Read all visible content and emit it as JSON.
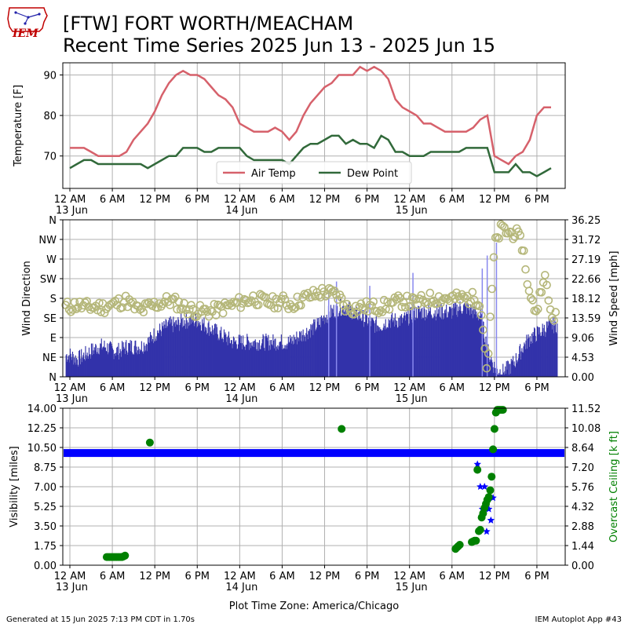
{
  "header": {
    "title_line1": "[FTW] FORT WORTH/MEACHAM",
    "title_line2": "Recent Time Series 2025 Jun 13 - 2025 Jun 15",
    "logo_text": "IEM"
  },
  "footer": {
    "generated": "Generated at 15 Jun 2025 7:13 PM CDT in 1.70s",
    "app": "IEM Autoplot App #43"
  },
  "colors": {
    "air_temp": "#d6616b",
    "dew_point": "#31693a",
    "wind_speed": "#3333aa",
    "wind_gust": "#8888ee",
    "wind_dir": "#b5b77a",
    "visibility": "#0000ff",
    "ceiling": "#008000"
  },
  "chart_data": [
    {
      "type": "line",
      "ylabel": "Temperature [F]",
      "ylim": [
        62,
        93
      ],
      "yticks": [
        70,
        80,
        90
      ],
      "grid": true,
      "legend": "bottom-center",
      "x_unit": "hours since 13 Jun 12 AM",
      "series": [
        {
          "name": "Air Temp",
          "x": [
            0,
            1,
            2,
            3,
            4,
            5,
            6,
            7,
            8,
            9,
            10,
            11,
            12,
            13,
            14,
            15,
            16,
            17,
            18,
            19,
            20,
            21,
            22,
            23,
            24,
            25,
            26,
            27,
            28,
            29,
            30,
            31,
            32,
            33,
            34,
            35,
            36,
            37,
            38,
            39,
            40,
            41,
            42,
            43,
            44,
            45,
            46,
            47,
            48,
            49,
            50,
            51,
            52,
            53,
            54,
            55,
            56,
            57,
            58,
            59,
            60,
            61,
            62,
            63,
            64,
            65,
            66,
            67,
            68
          ],
          "values": [
            72,
            72,
            72,
            71,
            70,
            70,
            70,
            70,
            71,
            74,
            76,
            78,
            81,
            85,
            88,
            90,
            91,
            90,
            90,
            89,
            87,
            85,
            84,
            82,
            78,
            77,
            76,
            76,
            76,
            77,
            76,
            74,
            76,
            80,
            83,
            85,
            87,
            88,
            90,
            90,
            90,
            92,
            91,
            92,
            91,
            89,
            84,
            82,
            81,
            80,
            78,
            78,
            77,
            76,
            76,
            76,
            76,
            77,
            79,
            80,
            70,
            69,
            68,
            70,
            71,
            74,
            80,
            82,
            82
          ]
        },
        {
          "name": "Dew Point",
          "x": [
            0,
            1,
            2,
            3,
            4,
            5,
            6,
            7,
            8,
            9,
            10,
            11,
            12,
            13,
            14,
            15,
            16,
            17,
            18,
            19,
            20,
            21,
            22,
            23,
            24,
            25,
            26,
            27,
            28,
            29,
            30,
            31,
            32,
            33,
            34,
            35,
            36,
            37,
            38,
            39,
            40,
            41,
            42,
            43,
            44,
            45,
            46,
            47,
            48,
            49,
            50,
            51,
            52,
            53,
            54,
            55,
            56,
            57,
            58,
            59,
            60,
            61,
            62,
            63,
            64,
            65,
            66,
            67,
            68
          ],
          "values": [
            67,
            68,
            69,
            69,
            68,
            68,
            68,
            68,
            68,
            68,
            68,
            67,
            68,
            69,
            70,
            70,
            72,
            72,
            72,
            71,
            71,
            72,
            72,
            72,
            72,
            70,
            69,
            69,
            69,
            69,
            69,
            68,
            70,
            72,
            73,
            73,
            74,
            75,
            75,
            73,
            74,
            73,
            73,
            72,
            75,
            74,
            71,
            71,
            70,
            70,
            70,
            71,
            71,
            71,
            71,
            71,
            72,
            72,
            72,
            72,
            66,
            66,
            66,
            68,
            66,
            66,
            65,
            66,
            67
          ]
        }
      ],
      "xtick_labels": [
        "12 AM\n13 Jun",
        "6 AM",
        "12 PM",
        "6 PM",
        "12 AM\n14 Jun",
        "6 AM",
        "12 PM",
        "6 PM",
        "12 AM\n15 Jun",
        "6 AM",
        "12 PM",
        "6 PM"
      ]
    },
    {
      "type": "bar",
      "ylabel_left": "Wind Direction",
      "ylabel_right": "Wind Speed [mph]",
      "left_tick_labels": [
        "N",
        "NE",
        "E",
        "SE",
        "S",
        "SW",
        "W",
        "NW",
        "N"
      ],
      "right_tick_labels": [
        "0.00",
        "4.53",
        "9.06",
        "13.59",
        "18.12",
        "22.66",
        "27.19",
        "31.72",
        "36.25"
      ],
      "speed_ylim": [
        0,
        36.25
      ],
      "direction_ylim": [
        0,
        360
      ],
      "grid": true,
      "x_unit": "hours since 13 Jun 12 AM",
      "speed_hourly": {
        "x": [
          0,
          1,
          2,
          3,
          4,
          5,
          6,
          7,
          8,
          9,
          10,
          11,
          12,
          13,
          14,
          15,
          16,
          17,
          18,
          19,
          20,
          21,
          22,
          23,
          24,
          25,
          26,
          27,
          28,
          29,
          30,
          31,
          32,
          33,
          34,
          35,
          36,
          37,
          38,
          39,
          40,
          41,
          42,
          43,
          44,
          45,
          46,
          47,
          48,
          49,
          50,
          51,
          52,
          53,
          54,
          55,
          56,
          57,
          58,
          59,
          60,
          61,
          62,
          63,
          64,
          65,
          66,
          67,
          68
        ],
        "values": [
          5,
          4,
          5,
          6,
          7,
          7,
          6,
          6,
          7,
          7,
          7,
          8,
          10,
          11,
          12,
          12,
          13,
          13,
          13,
          12,
          11,
          10,
          9,
          8,
          8,
          8,
          8,
          8,
          8,
          8,
          8,
          8,
          9,
          10,
          11,
          12,
          14,
          15,
          16,
          16,
          15,
          14,
          13,
          12,
          12,
          13,
          13,
          13,
          14,
          15,
          15,
          15,
          15,
          15,
          15,
          16,
          16,
          15,
          14,
          6,
          2,
          1,
          2,
          4,
          7,
          9,
          10,
          11,
          12
        ]
      },
      "gust_spikes": [
        {
          "x": 36.5,
          "value": 20
        },
        {
          "x": 37.6,
          "value": 22
        },
        {
          "x": 42.3,
          "value": 21
        },
        {
          "x": 48.4,
          "value": 24
        },
        {
          "x": 58.2,
          "value": 25
        },
        {
          "x": 58.9,
          "value": 28
        },
        {
          "x": 60.2,
          "value": 31
        }
      ],
      "direction_hourly": {
        "x": [
          0,
          1,
          2,
          3,
          4,
          5,
          6,
          7,
          8,
          9,
          10,
          11,
          12,
          13,
          14,
          15,
          16,
          17,
          18,
          19,
          20,
          21,
          22,
          23,
          24,
          25,
          26,
          27,
          28,
          29,
          30,
          31,
          32,
          33,
          34,
          35,
          36,
          37,
          38,
          39,
          40,
          41,
          42,
          43,
          44,
          45,
          46,
          47,
          48,
          49,
          50,
          51,
          52,
          53,
          54,
          55,
          56,
          57,
          58,
          59,
          60,
          61,
          62,
          63,
          64,
          65,
          66,
          67,
          68
        ],
        "values": [
          160,
          165,
          160,
          160,
          160,
          160,
          165,
          170,
          175,
          160,
          150,
          160,
          165,
          170,
          175,
          170,
          160,
          155,
          150,
          150,
          150,
          155,
          160,
          165,
          170,
          175,
          180,
          175,
          170,
          170,
          175,
          165,
          170,
          180,
          185,
          190,
          195,
          190,
          185,
          160,
          155,
          160,
          160,
          160,
          160,
          165,
          170,
          175,
          170,
          170,
          175,
          180,
          180,
          180,
          180,
          180,
          180,
          180,
          175,
          10,
          300,
          340,
          330,
          330,
          300,
          180,
          150,
          240,
          140
        ]
      }
    },
    {
      "type": "scatter",
      "ylabel_left": "Visibility [miles]",
      "ylabel_right": "Overcast Ceiling [k ft]",
      "left_tick_labels": [
        "0.00",
        "1.75",
        "3.50",
        "5.25",
        "7.00",
        "8.75",
        "10.50",
        "12.25",
        "14.00"
      ],
      "right_tick_labels": [
        "0.00",
        "1.44",
        "2.88",
        "4.32",
        "5.76",
        "7.20",
        "8.64",
        "10.08",
        "11.52"
      ],
      "visibility_ylim": [
        0,
        14
      ],
      "ceiling_ylim": [
        0,
        11.52
      ],
      "grid": true,
      "xlabel": "Plot Time Zone: America/Chicago",
      "x_unit": "hours since 13 Jun 12 AM",
      "visibility": {
        "baseline_value": 10,
        "baseline_x_range": [
          0,
          68
        ],
        "dips": [
          {
            "x": 57.1,
            "value": 10
          },
          {
            "x": 57.6,
            "value": 9
          },
          {
            "x": 58.0,
            "value": 7
          },
          {
            "x": 58.3,
            "value": 5
          },
          {
            "x": 58.6,
            "value": 7
          },
          {
            "x": 58.9,
            "value": 3
          },
          {
            "x": 59.2,
            "value": 5
          },
          {
            "x": 59.5,
            "value": 4
          },
          {
            "x": 59.8,
            "value": 6
          },
          {
            "x": 60.0,
            "value": 10
          }
        ]
      },
      "ceiling": {
        "x": [
          5.2,
          5.4,
          5.6,
          5.8,
          6.0,
          6.2,
          6.4,
          6.6,
          6.8,
          7.0,
          7.2,
          7.4,
          7.6,
          7.8,
          11.3,
          38.4,
          54.5,
          54.7,
          54.9,
          55.1,
          56.8,
          57.0,
          57.2,
          57.4,
          57.6,
          57.8,
          58.0,
          58.2,
          58.4,
          58.6,
          58.8,
          59.0,
          59.2,
          59.4,
          59.6,
          59.8,
          60.0,
          60.2,
          60.4,
          60.6,
          60.8,
          61.0,
          61.2
        ],
        "values": [
          0.6,
          0.6,
          0.6,
          0.6,
          0.6,
          0.6,
          0.6,
          0.6,
          0.6,
          0.6,
          0.6,
          0.6,
          0.65,
          0.7,
          9.0,
          10.0,
          1.2,
          1.3,
          1.4,
          1.5,
          1.7,
          1.75,
          1.8,
          1.8,
          7.0,
          2.5,
          2.6,
          3.5,
          3.8,
          4.2,
          4.5,
          4.8,
          5.0,
          5.5,
          6.5,
          8.5,
          10.0,
          11.2,
          11.4,
          11.4,
          11.4,
          11.4,
          11.4
        ]
      }
    }
  ]
}
